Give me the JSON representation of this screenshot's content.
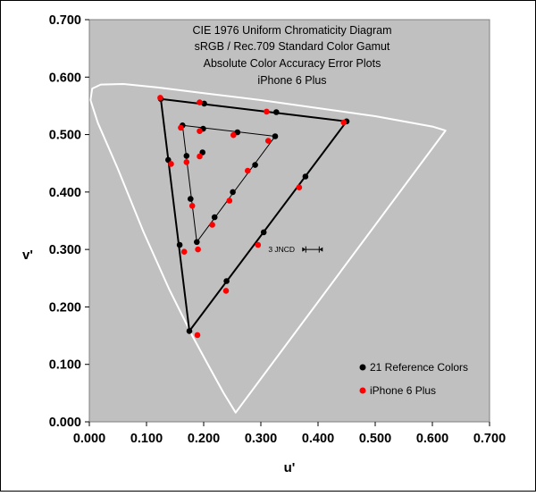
{
  "chart_data": {
    "type": "scatter",
    "title_lines": [
      "CIE 1976 Uniform Chromaticity Diagram",
      "sRGB / Rec.709 Standard Color Gamut",
      "Absolute Color Accuracy Error Plots",
      "iPhone 6 Plus"
    ],
    "xlabel": "u'",
    "ylabel": "v'",
    "xlim": [
      0.0,
      0.7
    ],
    "ylim": [
      0.0,
      0.7
    ],
    "xticks": [
      "0.000",
      "0.100",
      "0.200",
      "0.300",
      "0.400",
      "0.500",
      "0.600",
      "0.700"
    ],
    "yticks": [
      "0.000",
      "0.100",
      "0.200",
      "0.300",
      "0.400",
      "0.500",
      "0.600",
      "0.700"
    ],
    "grid": false,
    "legend_position": "bottom-right",
    "plot_background": "#c0c0c0",
    "locus_color": "#ffffff",
    "spectral_locus": [
      [
        0.256,
        0.016
      ],
      [
        0.235,
        0.05
      ],
      [
        0.21,
        0.095
      ],
      [
        0.18,
        0.15
      ],
      [
        0.14,
        0.23
      ],
      [
        0.095,
        0.33
      ],
      [
        0.05,
        0.44
      ],
      [
        0.015,
        0.52
      ],
      [
        0.002,
        0.56
      ],
      [
        0.005,
        0.58
      ],
      [
        0.02,
        0.587
      ],
      [
        0.06,
        0.588
      ],
      [
        0.12,
        0.582
      ],
      [
        0.2,
        0.572
      ],
      [
        0.3,
        0.56
      ],
      [
        0.4,
        0.546
      ],
      [
        0.5,
        0.532
      ],
      [
        0.6,
        0.514
      ],
      [
        0.623,
        0.507
      ]
    ],
    "series": [
      {
        "name": "21 Reference Colors",
        "color": "#000000",
        "points": [
          [
            0.175,
            0.158
          ],
          [
            0.24,
            0.245
          ],
          [
            0.305,
            0.33
          ],
          [
            0.378,
            0.427
          ],
          [
            0.45,
            0.523
          ],
          [
            0.327,
            0.539
          ],
          [
            0.201,
            0.554
          ],
          [
            0.125,
            0.562
          ],
          [
            0.138,
            0.456
          ],
          [
            0.158,
            0.308
          ],
          [
            0.188,
            0.313
          ],
          [
            0.219,
            0.356
          ],
          [
            0.251,
            0.4
          ],
          [
            0.29,
            0.447
          ],
          [
            0.325,
            0.497
          ],
          [
            0.259,
            0.504
          ],
          [
            0.199,
            0.51
          ],
          [
            0.163,
            0.516
          ],
          [
            0.17,
            0.463
          ],
          [
            0.177,
            0.388
          ],
          [
            0.198,
            0.469
          ]
        ]
      },
      {
        "name": "iPhone 6 Plus",
        "color": "#ff0000",
        "points": [
          [
            0.189,
            0.151
          ],
          [
            0.239,
            0.228
          ],
          [
            0.295,
            0.308
          ],
          [
            0.367,
            0.408
          ],
          [
            0.445,
            0.521
          ],
          [
            0.31,
            0.54
          ],
          [
            0.193,
            0.556
          ],
          [
            0.124,
            0.564
          ],
          [
            0.143,
            0.449
          ],
          [
            0.166,
            0.296
          ],
          [
            0.19,
            0.3
          ],
          [
            0.215,
            0.343
          ],
          [
            0.245,
            0.385
          ],
          [
            0.277,
            0.437
          ],
          [
            0.313,
            0.489
          ],
          [
            0.252,
            0.499
          ],
          [
            0.193,
            0.506
          ],
          [
            0.16,
            0.512
          ],
          [
            0.17,
            0.452
          ],
          [
            0.18,
            0.376
          ],
          [
            0.193,
            0.462
          ]
        ]
      }
    ],
    "gamut_lines": [
      {
        "color": "#000000",
        "vertices": [
          [
            0.125,
            0.562
          ],
          [
            0.45,
            0.523
          ],
          [
            0.175,
            0.158
          ]
        ]
      },
      {
        "color": "#000000",
        "vertices": [
          [
            0.163,
            0.516
          ],
          [
            0.325,
            0.497
          ],
          [
            0.188,
            0.313
          ]
        ]
      }
    ],
    "annotation": {
      "text": "3 JNCD",
      "x": 0.313,
      "y": 0.3
    }
  }
}
